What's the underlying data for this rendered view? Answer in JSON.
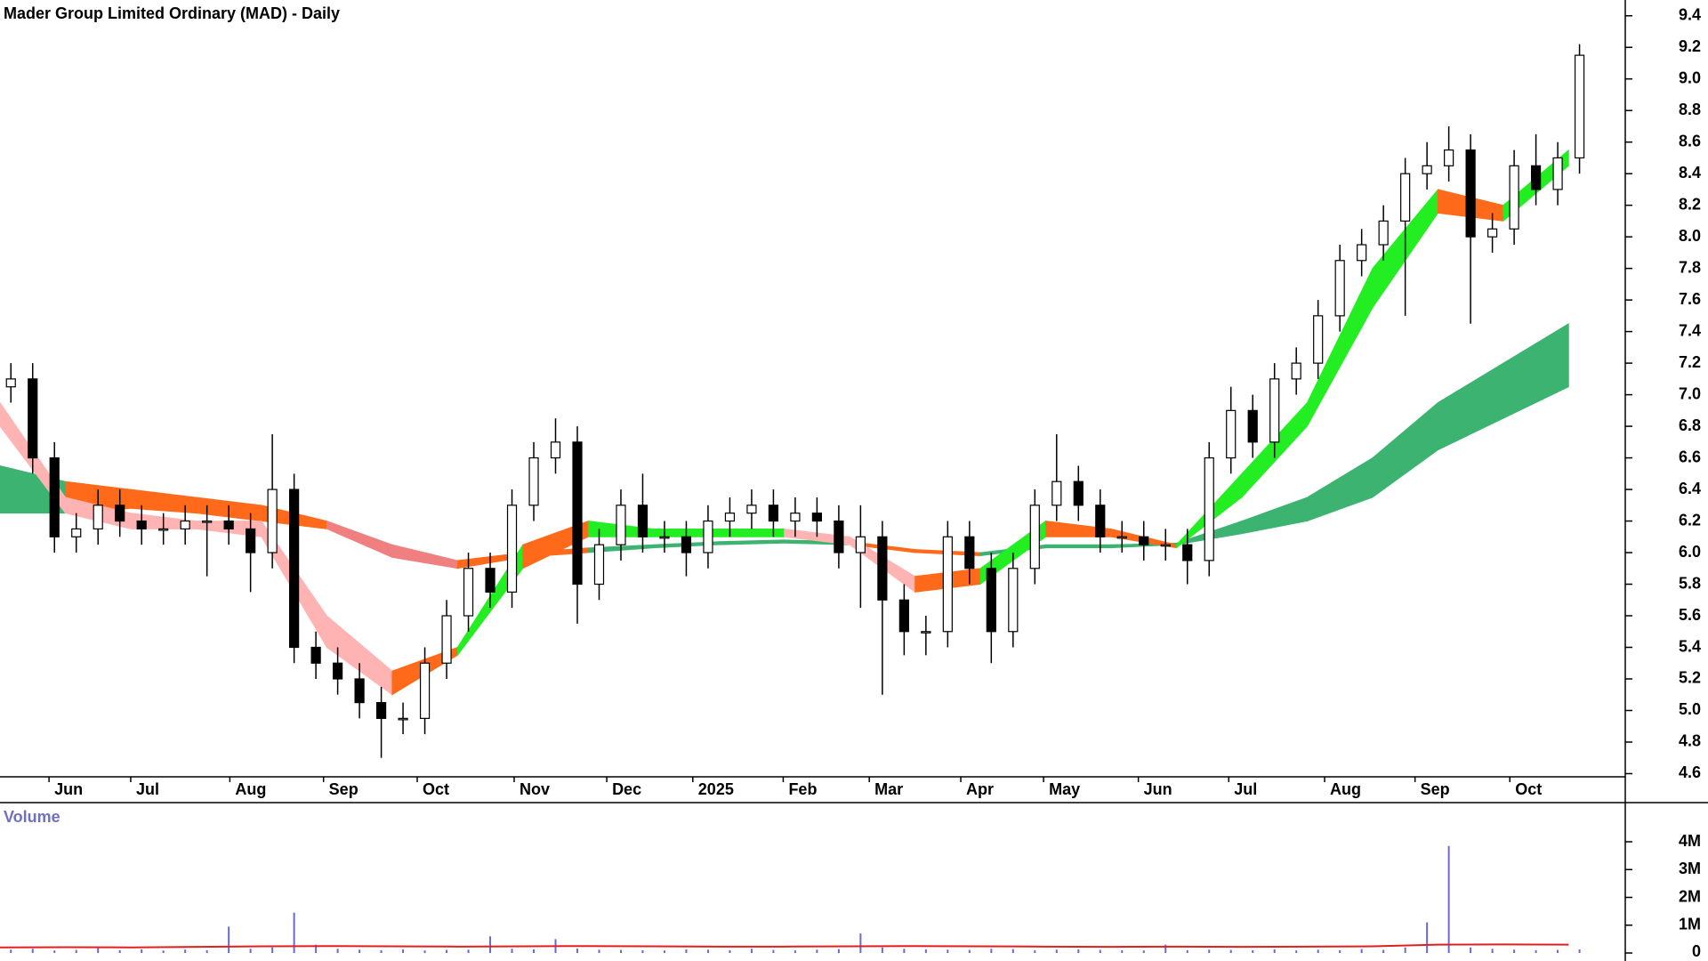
{
  "chart_data": {
    "type": "candlestick",
    "title": "Mader Group Limited Ordinary (MAD) - Daily",
    "xlim": [
      0,
      74.6
    ],
    "xticks": [
      {
        "value": 2.25,
        "label": "Jun"
      },
      {
        "value": 6.0,
        "label": "Jul"
      },
      {
        "value": 10.55,
        "label": "Aug"
      },
      {
        "value": 14.85,
        "label": "Sep"
      },
      {
        "value": 19.15,
        "label": "Oct"
      },
      {
        "value": 23.6,
        "label": "Nov"
      },
      {
        "value": 27.85,
        "label": "Dec"
      },
      {
        "value": 31.8,
        "label": "2025"
      },
      {
        "value": 35.95,
        "label": "Feb"
      },
      {
        "value": 39.9,
        "label": "Mar"
      },
      {
        "value": 44.1,
        "label": "Apr"
      },
      {
        "value": 47.9,
        "label": "May"
      },
      {
        "value": 52.25,
        "label": "Jun"
      },
      {
        "value": 56.4,
        "label": "Jul"
      },
      {
        "value": 60.8,
        "label": "Aug"
      },
      {
        "value": 64.95,
        "label": "Sep"
      },
      {
        "value": 69.3,
        "label": "Oct"
      }
    ],
    "ylim": [
      4.58,
      9.5
    ],
    "yticks": [
      4.6,
      4.8,
      {
        "value": 5,
        "label": "5.0"
      },
      5.2,
      5.4,
      5.6,
      5.8,
      {
        "value": 6,
        "label": "6.0"
      },
      6.2,
      6.4,
      6.6,
      6.8,
      {
        "value": 7,
        "label": "7.0"
      },
      7.2,
      7.4,
      7.6,
      7.8,
      {
        "value": 8,
        "label": "8.0"
      },
      8.2,
      8.4,
      8.6,
      8.8,
      {
        "value": 9,
        "label": "9.0"
      },
      9.2,
      9.4
    ],
    "up_color": "#ffffff",
    "down_color": "#000000",
    "x": [
      0.5,
      1.5,
      2.5,
      3.5,
      4.5,
      5.5,
      6.5,
      7.5,
      8.5,
      9.5,
      10.5,
      11.5,
      12.5,
      13.5,
      14.5,
      15.5,
      16.5,
      17.5,
      18.5,
      19.5,
      20.5,
      21.5,
      22.5,
      23.5,
      24.5,
      25.5,
      26.5,
      27.5,
      28.5,
      29.5,
      30.5,
      31.5,
      32.5,
      33.5,
      34.5,
      35.5,
      36.5,
      37.5,
      38.5,
      39.5,
      40.5,
      41.5,
      42.5,
      43.5,
      44.5,
      45.5,
      46.5,
      47.5,
      48.5,
      49.5,
      50.5,
      51.5,
      52.5,
      53.5,
      54.5,
      55.5,
      56.5,
      57.5,
      58.5,
      59.5,
      60.5,
      61.5,
      62.5,
      63.5,
      64.5,
      65.5,
      66.5,
      67.5,
      68.5,
      69.5,
      70.5,
      71.5,
      72.5
    ],
    "open": [
      7.05,
      7.1,
      6.6,
      6.1,
      6.15,
      6.3,
      6.2,
      6.15,
      6.15,
      6.2,
      6.2,
      6.15,
      6.0,
      6.4,
      5.4,
      5.3,
      5.2,
      5.05,
      4.95,
      4.95,
      5.3,
      5.6,
      5.9,
      5.75,
      6.3,
      6.6,
      6.7,
      5.8,
      6.05,
      6.3,
      6.1,
      6.1,
      6.0,
      6.2,
      6.25,
      6.3,
      6.2,
      6.25,
      6.2,
      6.0,
      6.1,
      5.7,
      5.5,
      5.5,
      6.1,
      5.9,
      5.5,
      5.9,
      6.3,
      6.45,
      6.3,
      6.1,
      6.1,
      6.05,
      6.05,
      5.95,
      6.6,
      6.9,
      6.7,
      7.1,
      7.2,
      7.5,
      7.85,
      7.95,
      8.1,
      8.4,
      8.45,
      8.55,
      8.0,
      8.05,
      8.45,
      8.3,
      8.5
    ],
    "high": [
      7.2,
      7.2,
      6.7,
      6.25,
      6.4,
      6.4,
      6.3,
      6.25,
      6.3,
      6.3,
      6.3,
      6.25,
      6.75,
      6.5,
      5.5,
      5.4,
      5.3,
      5.15,
      5.05,
      5.4,
      5.7,
      6.0,
      6.0,
      6.4,
      6.7,
      6.85,
      6.8,
      6.15,
      6.4,
      6.5,
      6.2,
      6.2,
      6.3,
      6.35,
      6.4,
      6.4,
      6.35,
      6.35,
      6.3,
      6.3,
      6.2,
      5.8,
      5.6,
      6.2,
      6.2,
      6.0,
      6.0,
      6.4,
      6.75,
      6.55,
      6.4,
      6.2,
      6.2,
      6.15,
      6.15,
      6.7,
      7.05,
      7.0,
      7.2,
      7.3,
      7.6,
      7.95,
      8.05,
      8.2,
      8.5,
      8.6,
      8.7,
      8.65,
      8.15,
      8.55,
      8.65,
      8.6,
      9.22
    ],
    "low": [
      6.95,
      6.5,
      6.0,
      6.0,
      6.05,
      6.1,
      6.05,
      6.05,
      6.05,
      5.85,
      6.05,
      5.75,
      5.9,
      5.3,
      5.2,
      5.1,
      4.95,
      4.7,
      4.85,
      4.85,
      5.2,
      5.5,
      5.65,
      5.65,
      6.2,
      6.5,
      5.55,
      5.7,
      5.95,
      6.0,
      6.0,
      5.85,
      5.9,
      6.1,
      6.15,
      6.1,
      6.1,
      6.1,
      5.9,
      5.65,
      5.1,
      5.35,
      5.35,
      5.4,
      5.8,
      5.3,
      5.4,
      5.8,
      6.2,
      6.2,
      6.0,
      6.0,
      5.95,
      5.95,
      5.8,
      5.85,
      6.5,
      6.6,
      6.6,
      7.0,
      7.1,
      7.4,
      7.75,
      7.85,
      7.5,
      8.3,
      8.35,
      7.45,
      7.9,
      7.95,
      8.2,
      8.2,
      8.4
    ],
    "close": [
      7.1,
      6.6,
      6.1,
      6.15,
      6.3,
      6.2,
      6.15,
      6.15,
      6.2,
      6.2,
      6.15,
      6.0,
      6.4,
      5.4,
      5.3,
      5.2,
      5.05,
      4.95,
      4.95,
      5.3,
      5.6,
      5.9,
      5.75,
      6.3,
      6.6,
      6.7,
      5.8,
      6.05,
      6.3,
      6.1,
      6.1,
      6.0,
      6.2,
      6.25,
      6.3,
      6.2,
      6.25,
      6.2,
      6.0,
      6.1,
      5.7,
      5.5,
      5.5,
      6.1,
      5.9,
      5.5,
      5.9,
      6.3,
      6.45,
      6.3,
      6.1,
      6.1,
      6.05,
      6.05,
      5.95,
      6.6,
      6.9,
      6.7,
      7.1,
      7.2,
      7.5,
      7.85,
      7.95,
      8.1,
      8.4,
      8.45,
      8.55,
      8.0,
      8.05,
      8.45,
      8.3,
      8.5,
      9.15
    ],
    "ribbons": [
      {
        "x": [
          0,
          3,
          6,
          9,
          12,
          15,
          18,
          21,
          24,
          27,
          30,
          33,
          36,
          39,
          42,
          45,
          48,
          51,
          54,
          57,
          60,
          63,
          66,
          69,
          72
        ],
        "upper": [
          6.55,
          6.45,
          6.4,
          6.35,
          6.3,
          6.2,
          6.05,
          5.95,
          6.0,
          6.03,
          6.05,
          6.07,
          6.08,
          6.07,
          6.02,
          6.0,
          6.05,
          6.05,
          6.06,
          6.2,
          6.35,
          6.6,
          6.95,
          7.2,
          7.45
        ],
        "lower": [
          6.25,
          6.25,
          6.28,
          6.25,
          6.2,
          6.15,
          5.97,
          5.9,
          5.97,
          6.0,
          6.03,
          6.05,
          6.06,
          6.05,
          6.0,
          5.98,
          6.03,
          6.03,
          6.05,
          6.12,
          6.2,
          6.35,
          6.65,
          6.85,
          7.05
        ],
        "segment_colors": [
          "#3cb371",
          "#ff6a1a",
          "#ff6a1a",
          "#ff6a1a",
          "#ff6a1a",
          "#f08080",
          "#f08080",
          "#ff6a1a",
          "#ff6a1a",
          "#3cb371",
          "#3cb371",
          "#3cb371",
          "#3cb371",
          "#ff6a1a",
          "#ff6a1a",
          "#3cb371",
          "#3cb371",
          "#3cb371",
          "#3cb371",
          "#3cb371",
          "#3cb371",
          "#3cb371",
          "#3cb371",
          "#3cb371"
        ]
      },
      {
        "x": [
          0,
          3,
          6,
          9,
          12,
          15,
          18,
          21,
          24,
          27,
          30,
          33,
          36,
          39,
          42,
          45,
          48,
          51,
          54,
          57,
          60,
          63,
          66,
          69,
          72
        ],
        "upper": [
          6.95,
          6.35,
          6.25,
          6.2,
          6.2,
          5.6,
          5.25,
          5.4,
          6.05,
          6.2,
          6.15,
          6.15,
          6.15,
          6.1,
          5.85,
          5.9,
          6.2,
          6.15,
          6.05,
          6.5,
          6.95,
          7.8,
          8.3,
          8.2,
          8.55
        ],
        "lower": [
          6.8,
          6.25,
          6.15,
          6.15,
          6.1,
          5.4,
          5.1,
          5.35,
          5.9,
          6.1,
          6.1,
          6.1,
          6.1,
          6.05,
          5.75,
          5.8,
          6.1,
          6.1,
          6.03,
          6.35,
          6.8,
          7.55,
          8.15,
          8.1,
          8.45
        ],
        "segment_colors": [
          "#ffb3b3",
          "#ffb3b3",
          "#ffb3b3",
          "#ffb3b3",
          "#ffb3b3",
          "#ffb3b3",
          "#ff6a1a",
          "#22ee22",
          "#ff6a1a",
          "#22ee22",
          "#22ee22",
          "#22ee22",
          "#ffb3b3",
          "#ffb3b3",
          "#ff6a1a",
          "#22ee22",
          "#ff6a1a",
          "#ff6a1a",
          "#22ee22",
          "#22ee22",
          "#22ee22",
          "#22ee22",
          "#ff6a1a",
          "#22ee22"
        ]
      }
    ],
    "volume": {
      "label": "Volume",
      "color": "#6a6acd",
      "ylim": [
        0,
        4000000
      ],
      "yticks": [
        0,
        {
          "value": 1000000,
          "label": "1M"
        },
        {
          "value": 2000000,
          "label": "2M"
        },
        {
          "value": 3000000,
          "label": "3M"
        },
        {
          "value": 4000000,
          "label": "4M"
        }
      ],
      "values": [
        120000,
        150000,
        90000,
        110000,
        200000,
        100000,
        130000,
        90000,
        120000,
        100000,
        950000,
        150000,
        200000,
        1450000,
        300000,
        150000,
        120000,
        100000,
        130000,
        90000,
        110000,
        120000,
        600000,
        150000,
        130000,
        500000,
        160000,
        120000,
        110000,
        100000,
        90000,
        130000,
        120000,
        100000,
        150000,
        110000,
        90000,
        120000,
        140000,
        700000,
        200000,
        150000,
        130000,
        120000,
        110000,
        150000,
        140000,
        100000,
        120000,
        130000,
        110000,
        100000,
        90000,
        300000,
        100000,
        120000,
        110000,
        100000,
        130000,
        90000,
        120000,
        100000,
        140000,
        110000,
        200000,
        1100000,
        3850000,
        200000,
        150000,
        120000,
        100000,
        110000,
        130000
      ],
      "average": {
        "color": "#e02020",
        "x": [
          0,
          3,
          6,
          9,
          12,
          15,
          18,
          21,
          24,
          27,
          30,
          33,
          36,
          39,
          42,
          45,
          48,
          51,
          54,
          57,
          60,
          63,
          66,
          69,
          72
        ],
        "values": [
          200000,
          210000,
          200000,
          220000,
          240000,
          250000,
          240000,
          230000,
          240000,
          250000,
          240000,
          230000,
          230000,
          240000,
          250000,
          240000,
          230000,
          220000,
          230000,
          220000,
          230000,
          240000,
          300000,
          310000,
          300000
        ]
      }
    }
  }
}
